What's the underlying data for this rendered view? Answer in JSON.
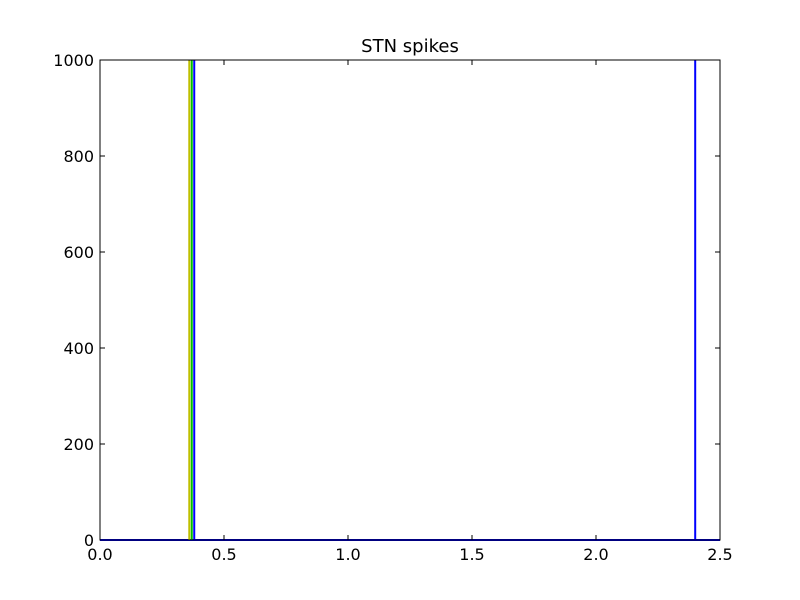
{
  "chart_data": {
    "type": "line",
    "title": "STN spikes",
    "xlabel": "",
    "ylabel": "",
    "xlim": [
      0.0,
      2.5
    ],
    "ylim": [
      0,
      1000
    ],
    "xticks": [
      "0.0",
      "0.5",
      "1.0",
      "1.5",
      "2.0",
      "2.5"
    ],
    "xtick_values": [
      0.0,
      0.5,
      1.0,
      1.5,
      2.0,
      2.5
    ],
    "yticks": [
      "0",
      "200",
      "400",
      "600",
      "800",
      "1000"
    ],
    "ytick_values": [
      0,
      200,
      400,
      600,
      800,
      1000
    ],
    "grid": false,
    "series": [
      {
        "color": "#bfbf00",
        "x": [
          0.36
        ],
        "y": [
          [
            0,
            1000
          ]
        ]
      },
      {
        "color": "#00bf00",
        "x": [
          0.37
        ],
        "y": [
          [
            0,
            1000
          ]
        ]
      },
      {
        "color": "#0000ff",
        "x": [
          0.38,
          2.4
        ],
        "y": [
          [
            0,
            1000
          ],
          [
            0,
            1000
          ]
        ]
      }
    ],
    "baseline": {
      "color": "#0000ff",
      "y": 0
    }
  }
}
